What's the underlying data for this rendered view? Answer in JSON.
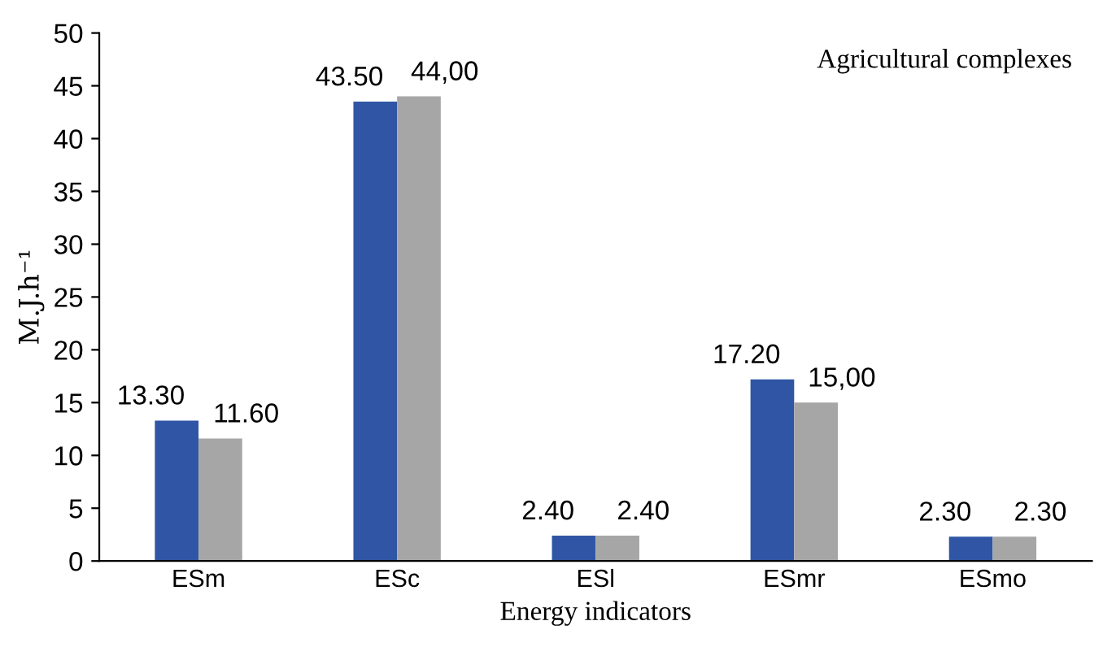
{
  "chart_data": {
    "type": "bar",
    "xlabel": "Energy indicators",
    "ylabel": "M.J.h⁻¹",
    "legend_title": "Agricultural complexes",
    "categories": [
      "ESm",
      "ESc",
      "ESl",
      "ESmr",
      "ESmo"
    ],
    "series": [
      {
        "color": "#2f55a4",
        "values": [
          13.3,
          43.5,
          2.4,
          17.2,
          2.3
        ],
        "value_labels": [
          "13.30",
          "43.50",
          "2.40",
          "17.20",
          "2.30"
        ]
      },
      {
        "color": "#a6a6a6",
        "values": [
          11.6,
          44.0,
          2.4,
          15.0,
          2.3
        ],
        "value_labels": [
          "11.60",
          "44,00",
          "2.40",
          "15,00",
          "2.30"
        ]
      }
    ],
    "ylim": [
      0,
      50
    ],
    "yticks": [
      0,
      5,
      10,
      15,
      20,
      25,
      30,
      35,
      40,
      45,
      50
    ],
    "grid": false
  }
}
